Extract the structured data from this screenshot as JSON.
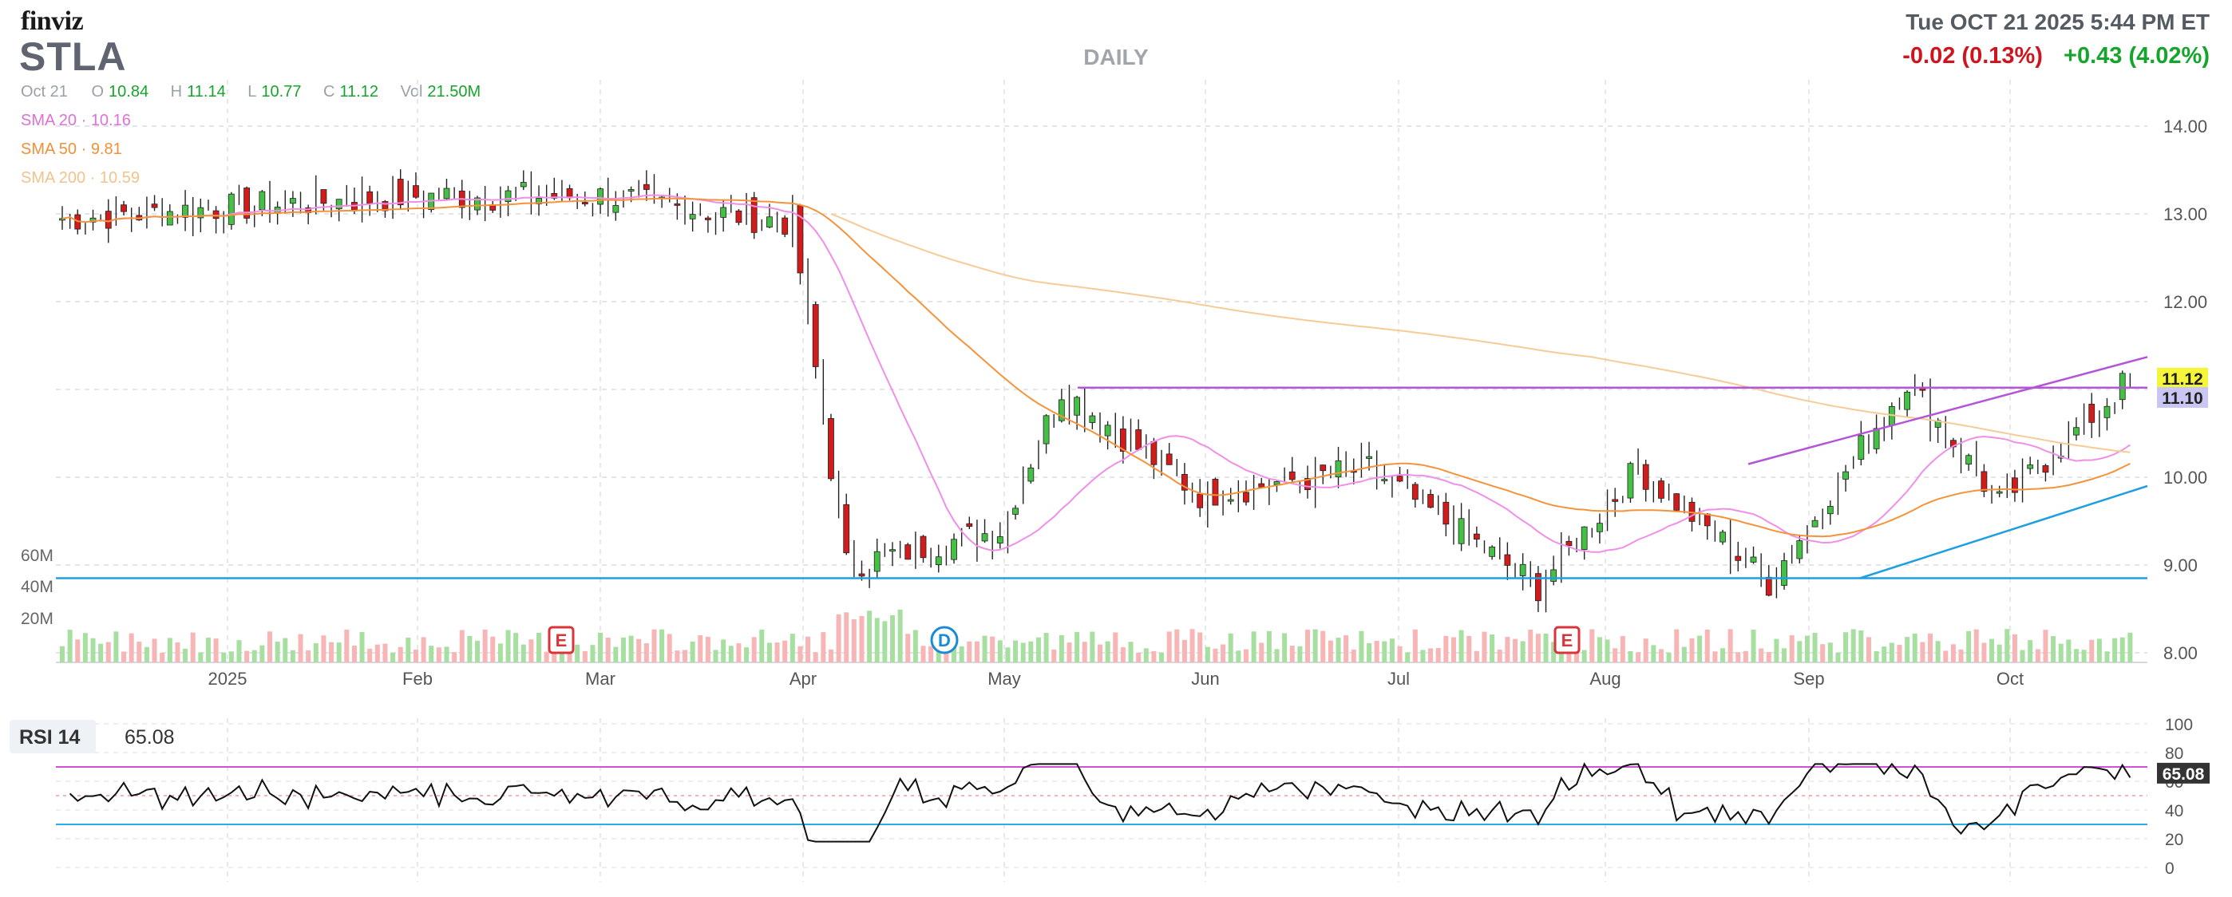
{
  "header": {
    "logo": "finviz",
    "ticker": "STLA",
    "period": "DAILY",
    "datetime": "Tue OCT 21 2025 5:44 PM ET",
    "change_after": "-0.02 (0.13%)",
    "change_day": "+0.43 (4.02%)"
  },
  "ohlc": {
    "date": "Oct 21",
    "open_label": "O",
    "open": "10.84",
    "high_label": "H",
    "high": "11.14",
    "low_label": "L",
    "low": "10.77",
    "close_label": "C",
    "close": "11.12",
    "vol_label": "Vol",
    "vol": "21.50M"
  },
  "indicators": {
    "sma20": "SMA 20 · 10.16",
    "sma50": "SMA 50 · 9.81",
    "sma200": "SMA 200 · 10.59"
  },
  "rsi": {
    "label": "RSI 14",
    "value": "65.08"
  },
  "colors": {
    "up": "#44c144",
    "down": "#d21b1b",
    "vol_up": "#a6dfa0",
    "vol_down": "#f7b5b5",
    "sma20": "#f08fe8",
    "sma50": "#f5933a",
    "sma200": "#f5cc97",
    "resistance": "#b455d8",
    "support": "#1e9fe0"
  },
  "chart_data": [
    {
      "type": "candlestick",
      "title": "STLA",
      "ylim": [
        8.0,
        14.5
      ],
      "y_ticks": [
        "14.00",
        "13.00",
        "12.00",
        "10.00",
        "9.00",
        "8.00"
      ],
      "x_labels": [
        "2025",
        "Feb",
        "Mar",
        "Apr",
        "May",
        "Jun",
        "Jul",
        "Aug",
        "Sep",
        "Oct"
      ],
      "volume_ticks": [
        "60M",
        "40M",
        "20M"
      ],
      "price_tags": [
        "11.12",
        "11.10"
      ],
      "events": [
        {
          "marker": "E",
          "date": "Feb 25"
        },
        {
          "marker": "D",
          "date": "Apr 22"
        },
        {
          "marker": "E",
          "date": "Jul 29"
        }
      ],
      "anchors": [
        {
          "month": "Jan",
          "price": 12.95
        },
        {
          "month": "Feb",
          "price": 13.2
        },
        {
          "month": "Mar",
          "price": 13.2
        },
        {
          "month": "Apr",
          "price": 12.9
        },
        {
          "month": "Apr",
          "price": 9.0
        },
        {
          "month": "May",
          "price": 9.4
        },
        {
          "month": "May",
          "price": 11.0
        },
        {
          "month": "Jun",
          "price": 9.8
        },
        {
          "month": "Jul",
          "price": 10.1
        },
        {
          "month": "Aug",
          "price": 8.75
        },
        {
          "month": "Aug",
          "price": 10.1
        },
        {
          "month": "Sep",
          "price": 8.8
        },
        {
          "month": "Oct",
          "price": 11.1
        },
        {
          "month": "Oct",
          "price": 9.7
        },
        {
          "month": "Oct",
          "price": 11.12
        }
      ]
    },
    {
      "type": "line",
      "title": "RSI 14",
      "ylim": [
        0,
        100
      ],
      "y_ticks": [
        "100",
        "80",
        "60",
        "40",
        "20",
        "0"
      ],
      "current": "65.08",
      "levels": [
        70,
        30
      ]
    }
  ]
}
